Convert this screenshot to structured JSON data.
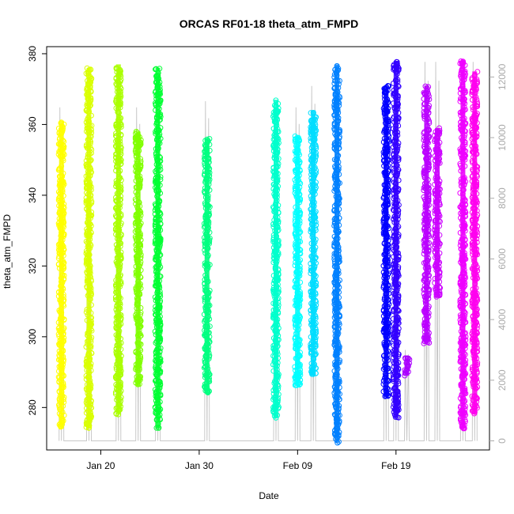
{
  "chart_data": {
    "type": "scatter",
    "title": "ORCAS RF01-18 theta_atm_FMPD",
    "xlabel": "Date",
    "ylabel": "theta_atm_FMPD",
    "x_ticks": [
      "Jan 20",
      "Jan 30",
      "Feb 09",
      "Feb 19"
    ],
    "x_tick_days": [
      20,
      30,
      40,
      50
    ],
    "xlim_days": [
      14.5,
      59.5
    ],
    "ylim": [
      268,
      382
    ],
    "y_ticks": [
      280,
      300,
      320,
      340,
      360,
      380
    ],
    "y2lim": [
      -300,
      13000
    ],
    "y2_ticks": [
      0,
      2000,
      4000,
      6000,
      8000,
      10000,
      12000
    ],
    "y2_color": "#aaaaaa",
    "series": [
      {
        "color": "#ffff00",
        "x_center": 16.0,
        "ymin": 274,
        "ymax": 361,
        "y2min": 0,
        "y2max": 11000
      },
      {
        "color": "#d9ff00",
        "x_center": 18.8,
        "ymin": 274,
        "ymax": 376,
        "y2min": 0,
        "y2max": 11200
      },
      {
        "color": "#aaff00",
        "x_center": 21.8,
        "ymin": 278,
        "ymax": 377,
        "y2min": 0,
        "y2max": 11500
      },
      {
        "color": "#80ff00",
        "x_center": 23.8,
        "ymin": 286,
        "ymax": 358,
        "y2min": 0,
        "y2max": 11000
      },
      {
        "color": "#00ff33",
        "x_center": 25.8,
        "ymin": 274,
        "ymax": 376,
        "y2min": 0,
        "y2max": 11500
      },
      {
        "color": "#00ff80",
        "x_center": 30.8,
        "ymin": 284,
        "ymax": 356,
        "y2min": 0,
        "y2max": 11200
      },
      {
        "color": "#00ffcc",
        "x_center": 37.8,
        "ymin": 277,
        "ymax": 367,
        "y2min": 0,
        "y2max": 11000
      },
      {
        "color": "#00ffff",
        "x_center": 40.0,
        "ymin": 286,
        "ymax": 357,
        "y2min": 0,
        "y2max": 11000
      },
      {
        "color": "#00ddff",
        "x_center": 41.6,
        "ymin": 289,
        "ymax": 364,
        "y2min": 0,
        "y2max": 11700
      },
      {
        "color": "#0080ff",
        "x_center": 44.0,
        "ymin": 270,
        "ymax": 377,
        "y2min": 0,
        "y2max": 11700
      },
      {
        "color": "#0000ff",
        "x_center": 49.0,
        "ymin": 283,
        "ymax": 371,
        "y2min": 0,
        "y2max": 11500
      },
      {
        "color": "#3300ff",
        "x_center": 50.0,
        "ymin": 277,
        "ymax": 378,
        "y2min": 0,
        "y2max": 11500
      },
      {
        "color": "#aa00ff",
        "x_center": 51.1,
        "ymin": 289,
        "ymax": 294,
        "y2min": 0,
        "y2max": 3000
      },
      {
        "color": "#bb00ff",
        "x_center": 53.1,
        "ymin": 298,
        "ymax": 371,
        "y2min": 0,
        "y2max": 12500
      },
      {
        "color": "#cc00ff",
        "x_center": 54.2,
        "ymin": 311,
        "ymax": 359,
        "y2min": 0,
        "y2max": 12500
      },
      {
        "color": "#ee00ff",
        "x_center": 56.8,
        "ymin": 274,
        "ymax": 378,
        "y2min": 0,
        "y2max": 12500
      },
      {
        "color": "#ff00ee",
        "x_center": 58.0,
        "ymin": 278,
        "ymax": 375,
        "y2min": 0,
        "y2max": 12500
      }
    ]
  }
}
